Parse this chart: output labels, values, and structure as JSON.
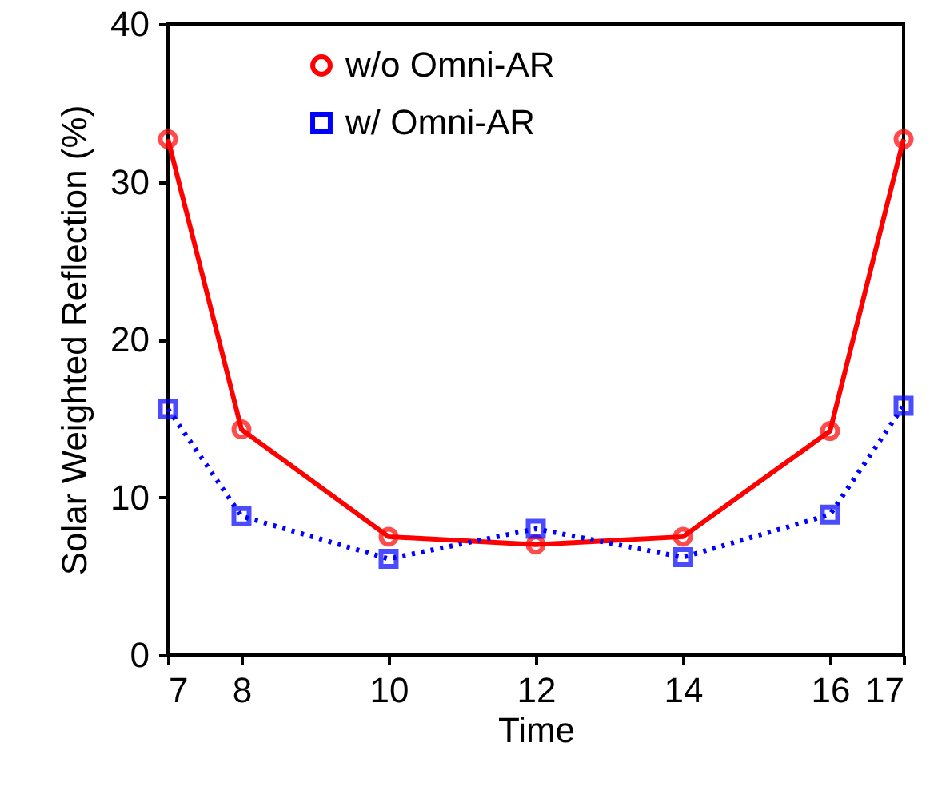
{
  "chart_data": {
    "type": "line",
    "xlabel": "Time",
    "ylabel": "Solar Weighted Reflection (%)",
    "x": [
      7,
      8,
      10,
      12,
      14,
      16,
      17
    ],
    "xlim": [
      7,
      17
    ],
    "xticks": [
      7,
      8,
      10,
      12,
      14,
      16,
      17
    ],
    "ylim": [
      0,
      40
    ],
    "yticks": [
      0,
      10,
      20,
      30,
      40
    ],
    "grid": false,
    "legend": "top",
    "series": [
      {
        "name": "w/o Omni-AR",
        "color": "#ff0000",
        "marker": "circle",
        "line_style": "solid",
        "values": [
          32.7,
          14.3,
          7.5,
          7.0,
          7.5,
          14.2,
          32.7
        ]
      },
      {
        "name": "w/ Omni-AR",
        "color": "#0000ff",
        "marker": "square",
        "line_style": "dotted",
        "values": [
          15.6,
          8.8,
          6.1,
          8.0,
          6.2,
          8.9,
          15.8
        ]
      }
    ]
  }
}
